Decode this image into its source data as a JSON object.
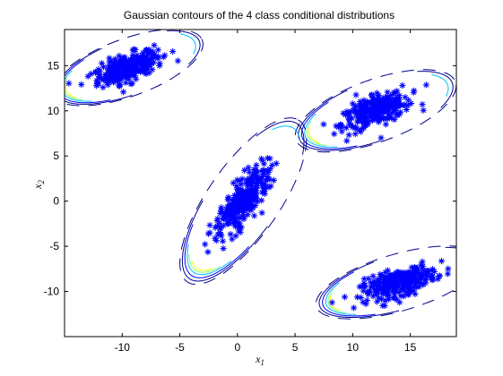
{
  "chart_data": {
    "type": "scatter",
    "title": "Gaussian contours of the 4 class conditional distributions",
    "xlabel": "x1",
    "ylabel": "x2",
    "xlim": [
      -15,
      19
    ],
    "ylim": [
      -15,
      19
    ],
    "x_ticks": [
      -10,
      -5,
      0,
      5,
      10,
      15
    ],
    "y_ticks": [
      -10,
      -5,
      0,
      5,
      10,
      15
    ],
    "x_tick_labels": [
      "-10",
      "-5",
      "0",
      "5",
      "10",
      "15"
    ],
    "y_tick_labels": [
      "-10",
      "-5",
      "0",
      "5",
      "10",
      "15"
    ],
    "grid": false,
    "marker": "*",
    "marker_color": "#0000ff",
    "contour_colors": [
      "#00008f",
      "#0000ff",
      "#00bfff",
      "#7fff7f",
      "#ffff00",
      "#ff7f00"
    ],
    "classes": [
      {
        "mean": [
          -9.5,
          14.8
        ],
        "sd_major": 2.8,
        "sd_minor": 1.2,
        "angle_deg": 27
      },
      {
        "mean": [
          12.0,
          10.0
        ],
        "sd_major": 3.0,
        "sd_minor": 1.3,
        "angle_deg": 27
      },
      {
        "mean": [
          0.5,
          0.0
        ],
        "sd_major": 4.0,
        "sd_minor": 1.3,
        "angle_deg": 63
      },
      {
        "mean": [
          14.0,
          -9.0
        ],
        "sd_major": 3.0,
        "sd_minor": 1.2,
        "angle_deg": 22
      }
    ],
    "points_per_class": 300
  }
}
